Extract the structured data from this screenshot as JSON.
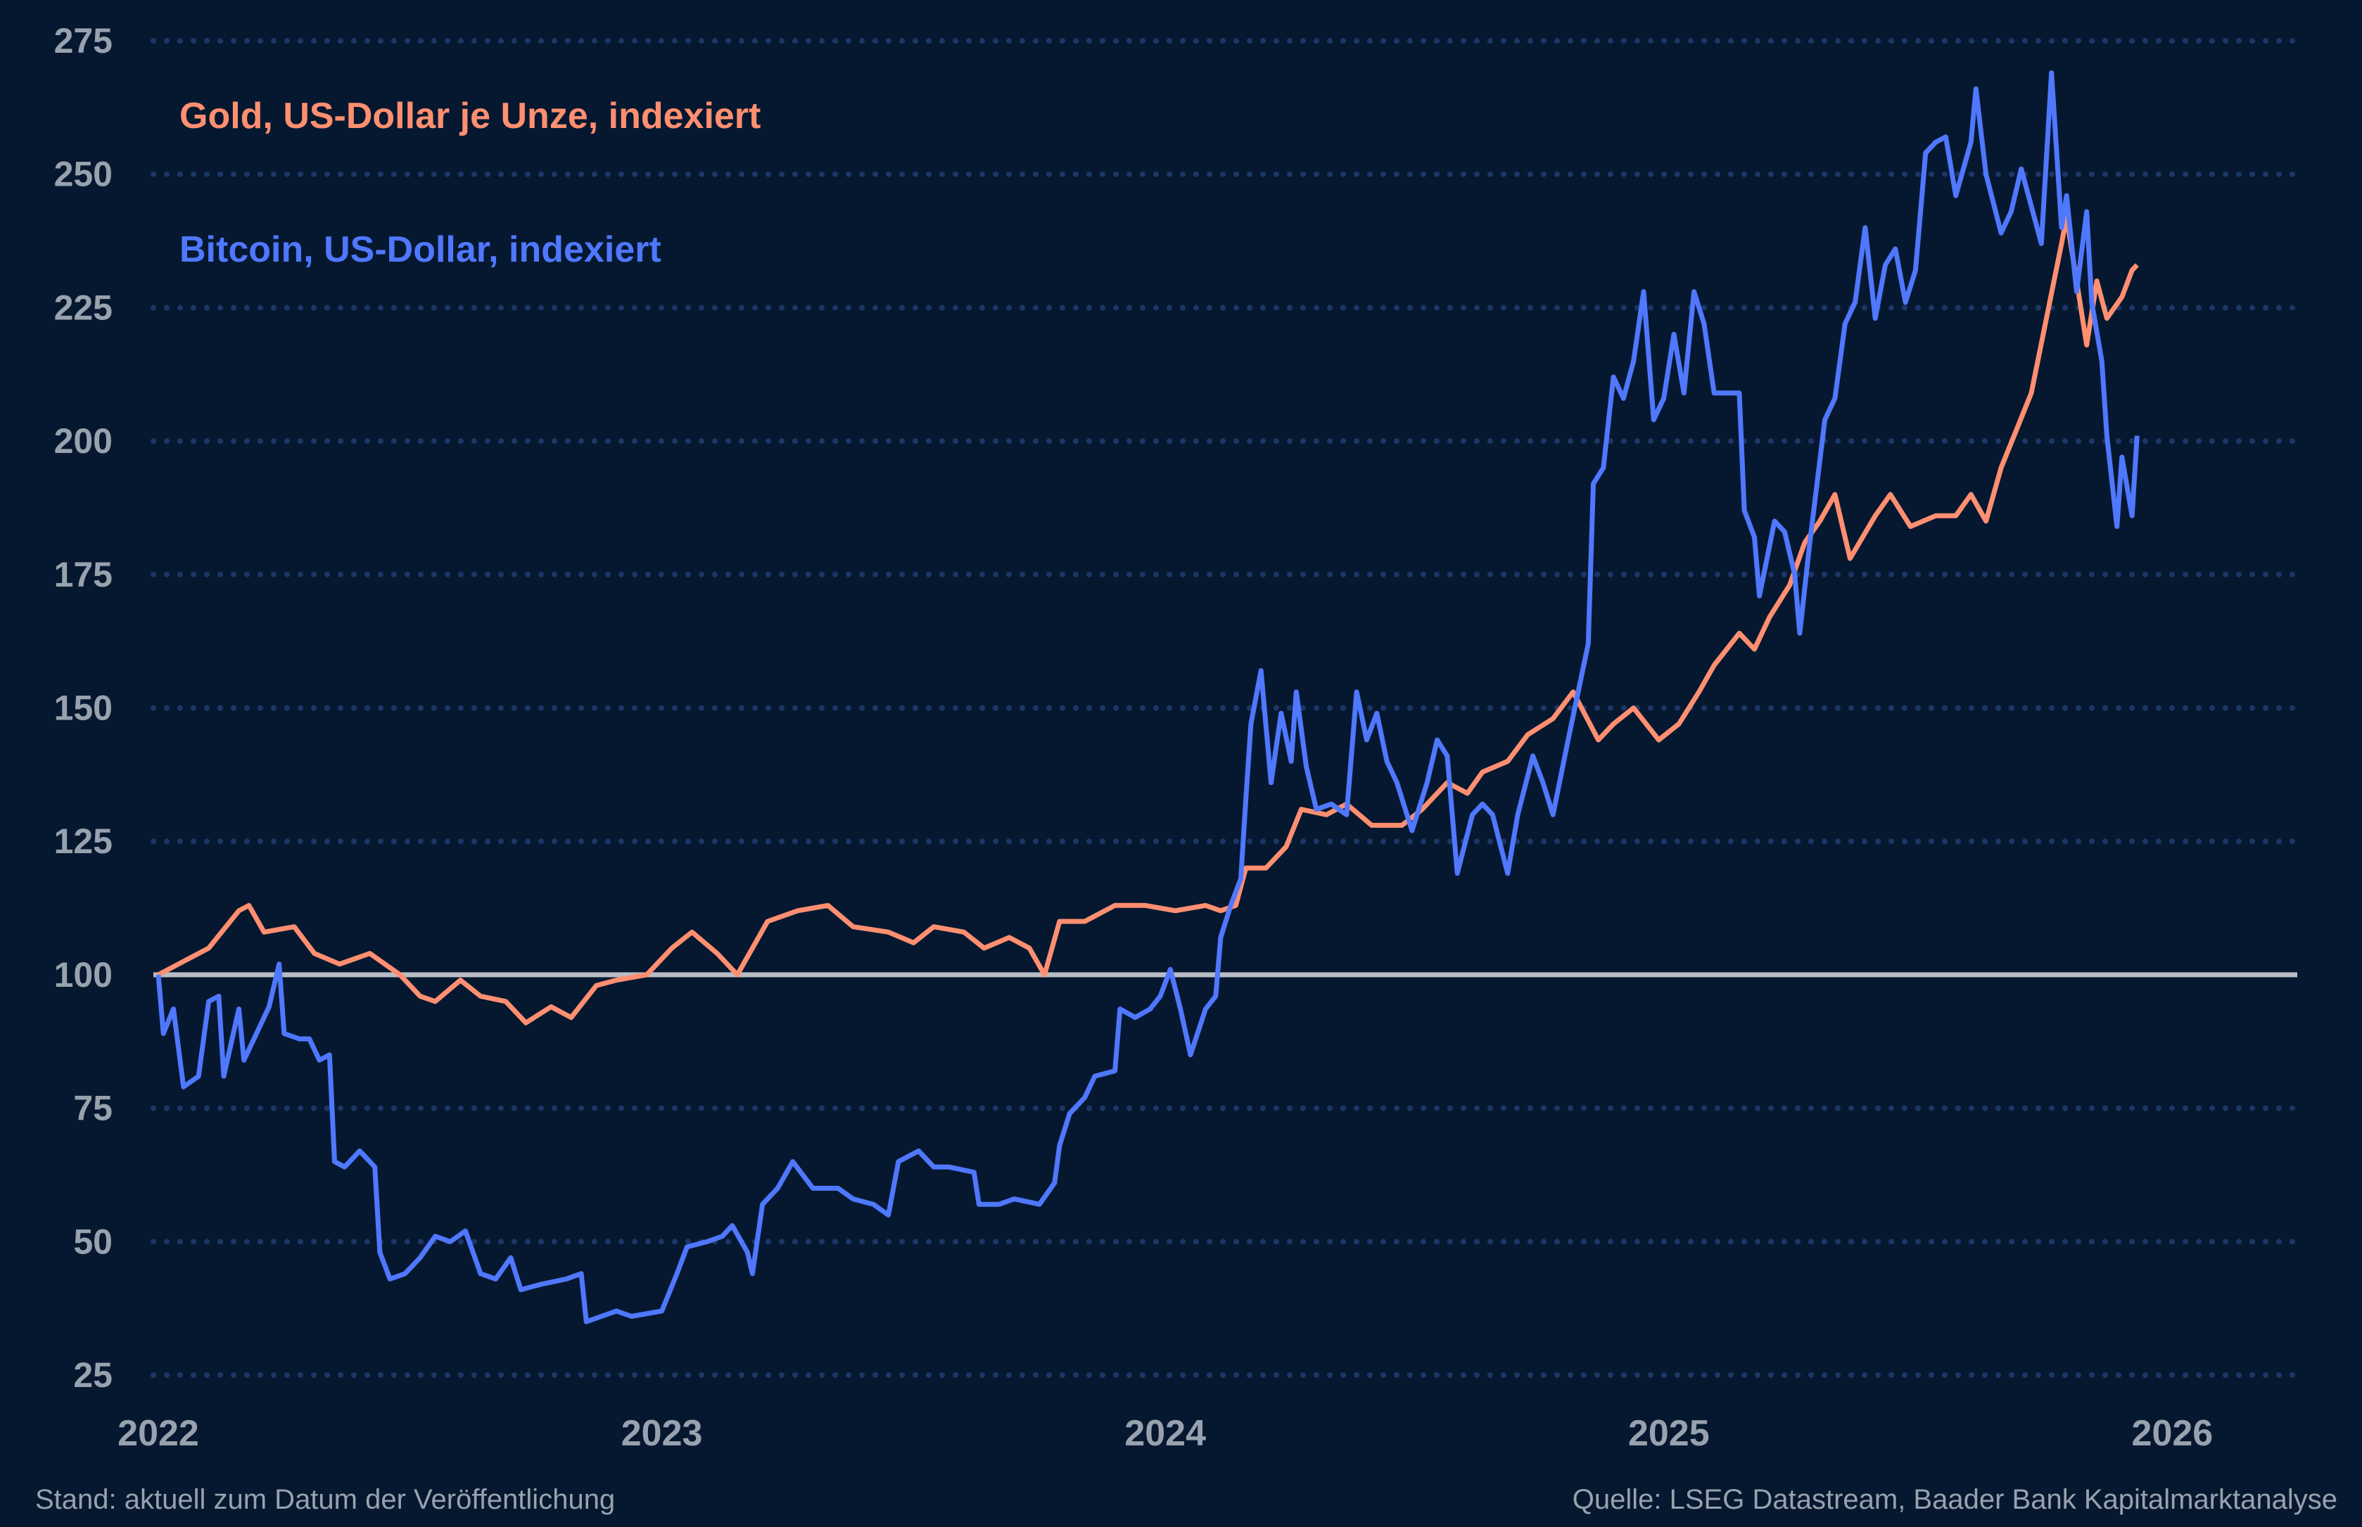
{
  "chart_data": {
    "type": "line",
    "title": "",
    "xlabel": "",
    "ylabel": "",
    "xlim": [
      2022,
      2026.25
    ],
    "ylim": [
      25,
      275
    ],
    "yticks": [
      "25",
      "50",
      "75",
      "100",
      "125",
      "150",
      "175",
      "200",
      "225",
      "250",
      "275"
    ],
    "xticks": [
      "2022",
      "2023",
      "2024",
      "2025",
      "2026"
    ],
    "grid": "horizontal dotted",
    "reference_line": 100,
    "legend_position": "top-left",
    "colors": {
      "background": "#061830",
      "gold": "#ff8f70",
      "bitcoin": "#4f78ff",
      "grid": "#1c3668",
      "reference": "#b8bcc4",
      "text": "#98a2ae"
    },
    "series": [
      {
        "name": "Gold, US-Dollar je Unze, indexiert",
        "color": "#ff8f70",
        "points": [
          [
            2022.0,
            100
          ],
          [
            2022.04,
            102
          ],
          [
            2022.1,
            105
          ],
          [
            2022.16,
            112
          ],
          [
            2022.18,
            113
          ],
          [
            2022.21,
            108
          ],
          [
            2022.27,
            109
          ],
          [
            2022.31,
            104
          ],
          [
            2022.36,
            102
          ],
          [
            2022.42,
            104
          ],
          [
            2022.48,
            100
          ],
          [
            2022.52,
            96
          ],
          [
            2022.55,
            95
          ],
          [
            2022.6,
            99
          ],
          [
            2022.64,
            96
          ],
          [
            2022.69,
            95
          ],
          [
            2022.73,
            91
          ],
          [
            2022.78,
            94
          ],
          [
            2022.82,
            92
          ],
          [
            2022.87,
            98
          ],
          [
            2022.91,
            99
          ],
          [
            2022.97,
            100
          ],
          [
            2023.02,
            105
          ],
          [
            2023.06,
            108
          ],
          [
            2023.11,
            104
          ],
          [
            2023.15,
            100
          ],
          [
            2023.18,
            105
          ],
          [
            2023.21,
            110
          ],
          [
            2023.27,
            112
          ],
          [
            2023.33,
            113
          ],
          [
            2023.38,
            109
          ],
          [
            2023.45,
            108
          ],
          [
            2023.5,
            106
          ],
          [
            2023.54,
            109
          ],
          [
            2023.6,
            108
          ],
          [
            2023.64,
            105
          ],
          [
            2023.69,
            107
          ],
          [
            2023.73,
            105
          ],
          [
            2023.76,
            100
          ],
          [
            2023.79,
            110
          ],
          [
            2023.84,
            110
          ],
          [
            2023.9,
            113
          ],
          [
            2023.96,
            113
          ],
          [
            2024.02,
            112
          ],
          [
            2024.08,
            113
          ],
          [
            2024.11,
            112
          ],
          [
            2024.14,
            113
          ],
          [
            2024.16,
            120
          ],
          [
            2024.2,
            120
          ],
          [
            2024.24,
            124
          ],
          [
            2024.27,
            131
          ],
          [
            2024.32,
            130
          ],
          [
            2024.36,
            132
          ],
          [
            2024.41,
            128
          ],
          [
            2024.47,
            128
          ],
          [
            2024.51,
            131
          ],
          [
            2024.56,
            136
          ],
          [
            2024.6,
            134
          ],
          [
            2024.63,
            138
          ],
          [
            2024.68,
            140
          ],
          [
            2024.72,
            145
          ],
          [
            2024.77,
            148
          ],
          [
            2024.81,
            153
          ],
          [
            2024.86,
            144
          ],
          [
            2024.89,
            147
          ],
          [
            2024.93,
            150
          ],
          [
            2024.98,
            144
          ],
          [
            2025.02,
            147
          ],
          [
            2025.06,
            153
          ],
          [
            2025.09,
            158
          ],
          [
            2025.14,
            164
          ],
          [
            2025.17,
            161
          ],
          [
            2025.2,
            167
          ],
          [
            2025.24,
            173
          ],
          [
            2025.27,
            181
          ],
          [
            2025.3,
            185
          ],
          [
            2025.33,
            190
          ],
          [
            2025.36,
            178
          ],
          [
            2025.41,
            186
          ],
          [
            2025.44,
            190
          ],
          [
            2025.48,
            184
          ],
          [
            2025.53,
            186
          ],
          [
            2025.57,
            186
          ],
          [
            2025.6,
            190
          ],
          [
            2025.63,
            185
          ],
          [
            2025.66,
            195
          ],
          [
            2025.69,
            202
          ],
          [
            2025.72,
            209
          ],
          [
            2025.75,
            223
          ],
          [
            2025.78,
            237
          ],
          [
            2025.79,
            242
          ],
          [
            2025.81,
            230
          ],
          [
            2025.83,
            218
          ],
          [
            2025.85,
            230
          ],
          [
            2025.87,
            223
          ],
          [
            2025.9,
            227
          ],
          [
            2025.92,
            232
          ],
          [
            2025.93,
            233
          ]
        ]
      },
      {
        "name": "Bitcoin, US-Dollar, indexiert",
        "color": "#4f78ff",
        "points": [
          [
            2022.0,
            100
          ],
          [
            2022.01,
            89
          ],
          [
            2022.03,
            93.6
          ],
          [
            2022.05,
            79
          ],
          [
            2022.08,
            81
          ],
          [
            2022.1,
            95
          ],
          [
            2022.12,
            96
          ],
          [
            2022.13,
            81
          ],
          [
            2022.16,
            93.6
          ],
          [
            2022.17,
            84
          ],
          [
            2022.19,
            88
          ],
          [
            2022.22,
            94
          ],
          [
            2022.24,
            102
          ],
          [
            2022.25,
            89
          ],
          [
            2022.28,
            88
          ],
          [
            2022.3,
            88
          ],
          [
            2022.32,
            84
          ],
          [
            2022.34,
            85
          ],
          [
            2022.35,
            65
          ],
          [
            2022.37,
            64
          ],
          [
            2022.4,
            67
          ],
          [
            2022.43,
            64
          ],
          [
            2022.44,
            48
          ],
          [
            2022.46,
            43
          ],
          [
            2022.49,
            44
          ],
          [
            2022.52,
            47
          ],
          [
            2022.55,
            51
          ],
          [
            2022.58,
            50
          ],
          [
            2022.61,
            52
          ],
          [
            2022.64,
            44
          ],
          [
            2022.67,
            43
          ],
          [
            2022.7,
            47
          ],
          [
            2022.72,
            41
          ],
          [
            2022.76,
            42
          ],
          [
            2022.81,
            43
          ],
          [
            2022.84,
            44
          ],
          [
            2022.85,
            35
          ],
          [
            2022.88,
            36
          ],
          [
            2022.91,
            37
          ],
          [
            2022.94,
            36
          ],
          [
            2023.0,
            37
          ],
          [
            2023.03,
            44
          ],
          [
            2023.05,
            49
          ],
          [
            2023.09,
            50
          ],
          [
            2023.12,
            51
          ],
          [
            2023.14,
            53
          ],
          [
            2023.17,
            48
          ],
          [
            2023.18,
            44
          ],
          [
            2023.2,
            57
          ],
          [
            2023.23,
            60
          ],
          [
            2023.26,
            65
          ],
          [
            2023.3,
            60
          ],
          [
            2023.35,
            60
          ],
          [
            2023.38,
            58
          ],
          [
            2023.42,
            57
          ],
          [
            2023.45,
            55
          ],
          [
            2023.47,
            65
          ],
          [
            2023.51,
            67
          ],
          [
            2023.54,
            64
          ],
          [
            2023.57,
            64
          ],
          [
            2023.62,
            63
          ],
          [
            2023.63,
            57
          ],
          [
            2023.67,
            57
          ],
          [
            2023.7,
            58
          ],
          [
            2023.75,
            57
          ],
          [
            2023.78,
            61
          ],
          [
            2023.79,
            68
          ],
          [
            2023.81,
            74
          ],
          [
            2023.84,
            77
          ],
          [
            2023.86,
            81
          ],
          [
            2023.9,
            82
          ],
          [
            2023.91,
            93.6
          ],
          [
            2023.94,
            92
          ],
          [
            2023.97,
            93.6
          ],
          [
            2023.99,
            96
          ],
          [
            2024.01,
            101
          ],
          [
            2024.03,
            93.6
          ],
          [
            2024.05,
            85
          ],
          [
            2024.08,
            93.6
          ],
          [
            2024.1,
            96
          ],
          [
            2024.11,
            107
          ],
          [
            2024.13,
            113
          ],
          [
            2024.15,
            118
          ],
          [
            2024.16,
            133
          ],
          [
            2024.17,
            147
          ],
          [
            2024.19,
            157
          ],
          [
            2024.21,
            136
          ],
          [
            2024.23,
            149
          ],
          [
            2024.25,
            140
          ],
          [
            2024.26,
            153
          ],
          [
            2024.28,
            139
          ],
          [
            2024.3,
            131
          ],
          [
            2024.33,
            132
          ],
          [
            2024.36,
            130
          ],
          [
            2024.38,
            153
          ],
          [
            2024.4,
            144
          ],
          [
            2024.42,
            149
          ],
          [
            2024.44,
            140
          ],
          [
            2024.46,
            136
          ],
          [
            2024.49,
            127
          ],
          [
            2024.52,
            136
          ],
          [
            2024.54,
            144
          ],
          [
            2024.56,
            141
          ],
          [
            2024.58,
            119
          ],
          [
            2024.61,
            130
          ],
          [
            2024.63,
            132
          ],
          [
            2024.65,
            130
          ],
          [
            2024.68,
            119
          ],
          [
            2024.7,
            130
          ],
          [
            2024.73,
            141
          ],
          [
            2024.75,
            136
          ],
          [
            2024.77,
            130
          ],
          [
            2024.8,
            144
          ],
          [
            2024.82,
            153
          ],
          [
            2024.84,
            162
          ],
          [
            2024.85,
            192
          ],
          [
            2024.87,
            195
          ],
          [
            2024.89,
            212
          ],
          [
            2024.91,
            208
          ],
          [
            2024.93,
            215
          ],
          [
            2024.95,
            228
          ],
          [
            2024.97,
            204
          ],
          [
            2024.99,
            208
          ],
          [
            2025.01,
            220
          ],
          [
            2025.03,
            209
          ],
          [
            2025.05,
            228
          ],
          [
            2025.07,
            222
          ],
          [
            2025.09,
            209
          ],
          [
            2025.12,
            209
          ],
          [
            2025.14,
            209
          ],
          [
            2025.15,
            187
          ],
          [
            2025.17,
            182
          ],
          [
            2025.18,
            171
          ],
          [
            2025.21,
            185
          ],
          [
            2025.23,
            183
          ],
          [
            2025.25,
            175
          ],
          [
            2025.26,
            164
          ],
          [
            2025.28,
            181
          ],
          [
            2025.31,
            204
          ],
          [
            2025.33,
            208
          ],
          [
            2025.35,
            222
          ],
          [
            2025.37,
            226
          ],
          [
            2025.39,
            240
          ],
          [
            2025.41,
            223
          ],
          [
            2025.43,
            233
          ],
          [
            2025.45,
            236
          ],
          [
            2025.47,
            226
          ],
          [
            2025.49,
            232
          ],
          [
            2025.51,
            254
          ],
          [
            2025.53,
            256
          ],
          [
            2025.55,
            257
          ],
          [
            2025.57,
            246
          ],
          [
            2025.6,
            256
          ],
          [
            2025.61,
            266
          ],
          [
            2025.63,
            250
          ],
          [
            2025.66,
            239
          ],
          [
            2025.68,
            243
          ],
          [
            2025.7,
            251
          ],
          [
            2025.72,
            244
          ],
          [
            2025.74,
            237
          ],
          [
            2025.76,
            269
          ],
          [
            2025.78,
            240
          ],
          [
            2025.79,
            246
          ],
          [
            2025.81,
            228
          ],
          [
            2025.83,
            243
          ],
          [
            2025.84,
            226
          ],
          [
            2025.86,
            215
          ],
          [
            2025.87,
            201
          ],
          [
            2025.89,
            184
          ],
          [
            2025.9,
            197
          ],
          [
            2025.92,
            186
          ],
          [
            2025.93,
            201
          ]
        ]
      }
    ]
  },
  "footer": {
    "left": "Stand: aktuell zum Datum der Veröffentlichung",
    "right": "Quelle: LSEG Datastream, Baader Bank Kapitalmarktanalyse"
  }
}
